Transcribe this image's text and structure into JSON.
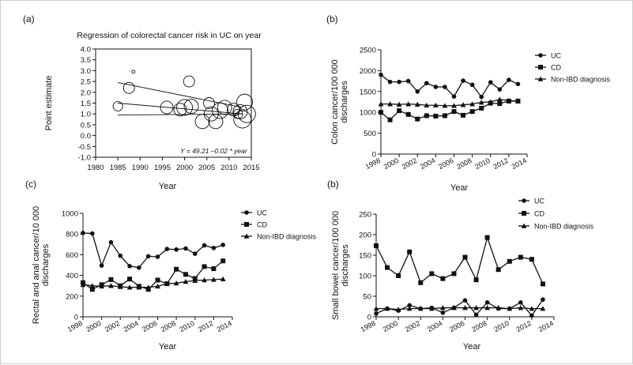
{
  "panels": {
    "a": {
      "label": "(a)",
      "chart_data": {
        "type": "scatter",
        "title": "Regression of colorectal cancer risk in UC on year",
        "xlabel": "Year",
        "ylabel": "Point estimate",
        "xlim": [
          1980,
          2015
        ],
        "ylim": [
          -1.0,
          4.0
        ],
        "x_ticks": [
          "1980",
          "1985",
          "1990",
          "1995",
          "2000",
          "2005",
          "2010",
          "2015"
        ],
        "y_ticks": [
          "4.0",
          "3.5",
          "3.0",
          "2.5",
          "2.0",
          "1.5",
          "1.0",
          "0.5",
          "0.0",
          "-0.5",
          "-1.0"
        ],
        "annotation": "Y = 49.21 –0.02 * year",
        "points": [
          {
            "x": 1985,
            "y": 1.35,
            "size": 6
          },
          {
            "x": 1987.5,
            "y": 2.2,
            "size": 7
          },
          {
            "x": 1988.5,
            "y": 2.95,
            "size": 2
          },
          {
            "x": 1996,
            "y": 1.3,
            "size": 8
          },
          {
            "x": 1999,
            "y": 1.2,
            "size": 8
          },
          {
            "x": 2000,
            "y": 1.3,
            "size": 10
          },
          {
            "x": 2001,
            "y": 2.5,
            "size": 7
          },
          {
            "x": 2001.5,
            "y": 1.35,
            "size": 9
          },
          {
            "x": 2004,
            "y": 0.65,
            "size": 9
          },
          {
            "x": 2005.5,
            "y": 1.5,
            "size": 7
          },
          {
            "x": 2006,
            "y": 1.0,
            "size": 9
          },
          {
            "x": 2007,
            "y": 0.65,
            "size": 9
          },
          {
            "x": 2008,
            "y": 1.15,
            "size": 10
          },
          {
            "x": 2009,
            "y": 1.3,
            "size": 9
          },
          {
            "x": 2011,
            "y": 1.2,
            "size": 8
          },
          {
            "x": 2012,
            "y": 1.0,
            "size": 6
          },
          {
            "x": 2012.5,
            "y": 1.1,
            "size": 9
          },
          {
            "x": 2013,
            "y": 0.75,
            "size": 11
          },
          {
            "x": 2013.5,
            "y": 1.55,
            "size": 10
          },
          {
            "x": 2014,
            "y": 1.0,
            "size": 11
          }
        ],
        "regression": {
          "x": [
            1985,
            2013
          ],
          "y": [
            1.5,
            1.0
          ]
        },
        "ci_upper": {
          "x": [
            1985,
            2013
          ],
          "y": [
            2.45,
            1.3
          ]
        },
        "ci_lower": {
          "x": [
            1985,
            2013
          ],
          "y": [
            0.95,
            1.0
          ]
        }
      }
    },
    "b": {
      "label": "(b)",
      "chart_data": {
        "type": "line",
        "xlabel": "Year",
        "ylabel": "Colon cancer/100 000 discharges",
        "ylim": [
          0,
          2500
        ],
        "x_ticks": [
          "1998",
          "2000",
          "2002",
          "2004",
          "2006",
          "2008",
          "2010",
          "2012",
          "2014"
        ],
        "y_ticks": [
          "2500",
          "2000",
          "1500",
          "1000",
          "500",
          "0"
        ],
        "x": [
          1998,
          1999,
          2000,
          2001,
          2002,
          2003,
          2004,
          2005,
          2006,
          2007,
          2008,
          2009,
          2010,
          2011,
          2012,
          2013
        ],
        "series": [
          {
            "name": "UC",
            "marker": "circle",
            "values": [
              1900,
              1730,
              1730,
              1750,
              1500,
              1700,
              1610,
              1610,
              1380,
              1760,
              1660,
              1370,
              1720,
              1550,
              1780,
              1680
            ]
          },
          {
            "name": "CD",
            "marker": "square",
            "values": [
              1000,
              820,
              1040,
              950,
              840,
              920,
              910,
              920,
              1020,
              930,
              1020,
              1100,
              1220,
              1210,
              1270,
              1270
            ]
          },
          {
            "name": "Non-IBD diagnosis",
            "marker": "triangle",
            "values": [
              1200,
              1200,
              1190,
              1200,
              1190,
              1170,
              1170,
              1160,
              1160,
              1180,
              1200,
              1240,
              1250,
              1310,
              1280,
              1270
            ]
          }
        ]
      }
    },
    "c": {
      "label": "(c)",
      "chart_data": {
        "type": "line",
        "xlabel": "Year",
        "ylabel": "Rectal and anal cancer/10 000 discharges",
        "ylim": [
          0,
          1000
        ],
        "x_ticks": [
          "1998",
          "2000",
          "2002",
          "2004",
          "2006",
          "2008",
          "2010",
          "2012",
          "2014"
        ],
        "y_ticks": [
          "1000",
          "800",
          "600",
          "400",
          "200",
          "0"
        ],
        "x": [
          1998,
          1999,
          2000,
          2001,
          2002,
          2003,
          2004,
          2005,
          2006,
          2007,
          2008,
          2009,
          2010,
          2011,
          2012,
          2013
        ],
        "series": [
          {
            "name": "UC",
            "marker": "circle",
            "values": [
              810,
              805,
              495,
              720,
              590,
              490,
              475,
              585,
              580,
              655,
              650,
              660,
              610,
              690,
              665,
              695
            ]
          },
          {
            "name": "CD",
            "marker": "square",
            "values": [
              330,
              265,
              310,
              360,
              300,
              365,
              295,
              265,
              355,
              320,
              460,
              410,
              370,
              485,
              465,
              540
            ]
          },
          {
            "name": "Non-IBD diagnosis",
            "marker": "triangle",
            "values": [
              310,
              300,
              295,
              300,
              290,
              285,
              285,
              285,
              295,
              320,
              325,
              340,
              350,
              355,
              360,
              365
            ]
          }
        ]
      }
    },
    "d": {
      "label": "(b)",
      "chart_data": {
        "type": "line",
        "xlabel": "Year",
        "ylabel": "Small bowel cancer/100 000 discharges",
        "ylim": [
          0,
          250
        ],
        "x_ticks": [
          "1998",
          "2000",
          "2002",
          "2004",
          "2006",
          "2008",
          "2010",
          "2012",
          "2014"
        ],
        "y_ticks": [
          "250",
          "200",
          "150",
          "100",
          "50",
          "0"
        ],
        "x": [
          1998,
          1999,
          2000,
          2001,
          2002,
          2003,
          2004,
          2005,
          2006,
          2007,
          2008,
          2009,
          2010,
          2011,
          2012,
          2013
        ],
        "series": [
          {
            "name": "UC",
            "marker": "circle",
            "values": [
              8,
              20,
              15,
              28,
              20,
              22,
              10,
              22,
              40,
              5,
              35,
              20,
              20,
              35,
              3,
              42
            ]
          },
          {
            "name": "CD",
            "marker": "square",
            "values": [
              173,
              120,
              100,
              158,
              83,
              105,
              93,
              105,
              145,
              90,
              193,
              115,
              135,
              145,
              140,
              80
            ]
          },
          {
            "name": "Non-IBD diagnosis",
            "marker": "triangle",
            "values": [
              20,
              20,
              18,
              20,
              20,
              20,
              22,
              22,
              22,
              22,
              22,
              22,
              20,
              22,
              20,
              20
            ]
          }
        ]
      }
    }
  }
}
